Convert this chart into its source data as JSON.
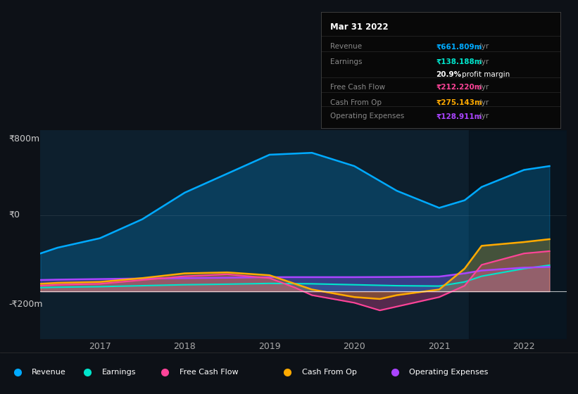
{
  "bg_color": "#0d1117",
  "chart_bg": "#0d1f2d",
  "y_label_800": "₹800m",
  "y_label_0": "₹0",
  "y_label_neg200": "-₹200m",
  "x_ticks": [
    2017,
    2018,
    2019,
    2020,
    2021,
    2022
  ],
  "ylim": [
    -250,
    850
  ],
  "xlim": [
    2016.3,
    2022.5
  ],
  "revenue_color": "#00aaff",
  "earnings_color": "#00e5cc",
  "fcf_color": "#ff4499",
  "cashfromop_color": "#ffaa00",
  "opex_color": "#aa44ff",
  "tooltip_title": "Mar 31 2022",
  "tooltip_revenue": "₹661.809m /yr",
  "tooltip_earnings": "₹138.188m /yr",
  "tooltip_margin": "20.9% profit margin",
  "tooltip_fcf": "₹212.220m /yr",
  "tooltip_cashop": "₹275.143m /yr",
  "tooltip_opex": "₹128.911m /yr",
  "revenue_x": [
    2016.3,
    2016.5,
    2017.0,
    2017.5,
    2018.0,
    2018.5,
    2019.0,
    2019.5,
    2020.0,
    2020.5,
    2021.0,
    2021.3,
    2021.5,
    2022.0,
    2022.3
  ],
  "revenue_y": [
    200,
    230,
    280,
    380,
    520,
    620,
    720,
    730,
    660,
    530,
    440,
    480,
    550,
    640,
    660
  ],
  "earnings_x": [
    2016.3,
    2016.5,
    2017.0,
    2017.5,
    2018.0,
    2018.5,
    2019.0,
    2019.5,
    2020.0,
    2020.5,
    2021.0,
    2021.3,
    2021.5,
    2022.0,
    2022.3
  ],
  "earnings_y": [
    20,
    22,
    25,
    30,
    35,
    38,
    42,
    40,
    35,
    30,
    28,
    50,
    80,
    120,
    138
  ],
  "fcf_x": [
    2016.3,
    2016.5,
    2017.0,
    2017.5,
    2018.0,
    2018.5,
    2019.0,
    2019.3,
    2019.5,
    2020.0,
    2020.3,
    2020.5,
    2021.0,
    2021.3,
    2021.5,
    2022.0,
    2022.3
  ],
  "fcf_y": [
    30,
    35,
    40,
    60,
    80,
    90,
    70,
    20,
    -20,
    -60,
    -100,
    -80,
    -30,
    30,
    140,
    200,
    212
  ],
  "cashfromop_x": [
    2016.3,
    2016.5,
    2017.0,
    2017.5,
    2018.0,
    2018.5,
    2019.0,
    2019.3,
    2019.5,
    2020.0,
    2020.3,
    2020.5,
    2021.0,
    2021.3,
    2021.5,
    2022.0,
    2022.3
  ],
  "cashfromop_y": [
    40,
    45,
    50,
    70,
    95,
    100,
    85,
    40,
    10,
    -30,
    -40,
    -20,
    10,
    120,
    240,
    260,
    275
  ],
  "opex_x": [
    2016.3,
    2016.5,
    2017.0,
    2017.5,
    2018.0,
    2018.5,
    2019.0,
    2019.5,
    2020.0,
    2020.5,
    2021.0,
    2021.3,
    2021.5,
    2022.0,
    2022.3
  ],
  "opex_y": [
    60,
    62,
    65,
    68,
    70,
    72,
    75,
    75,
    75,
    76,
    78,
    95,
    110,
    125,
    129
  ]
}
